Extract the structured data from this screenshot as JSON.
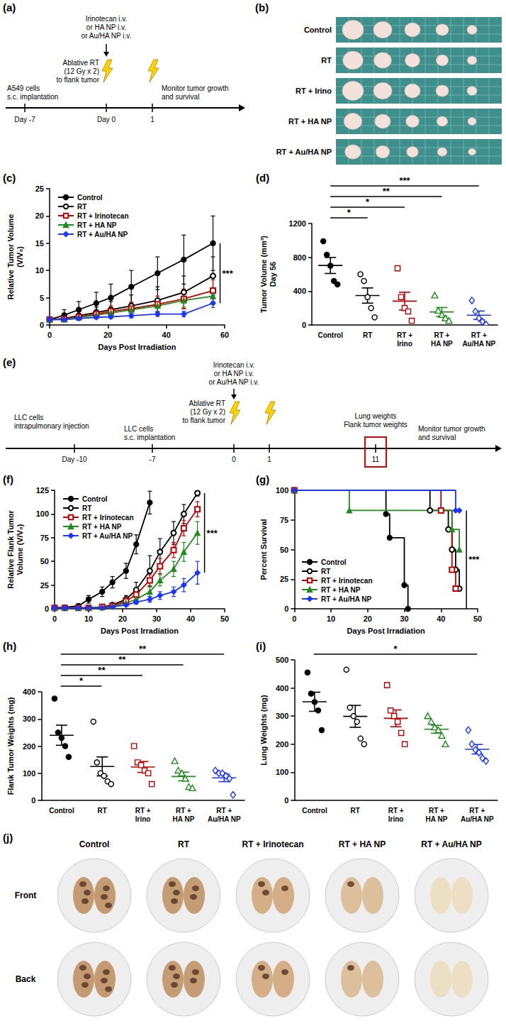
{
  "chart_data": [
    {
      "panel": "(c)",
      "type": "line",
      "xlabel": "Days Post Irradiation",
      "ylabel": [
        "Relative Tumor Volume",
        "(V/V₀)"
      ],
      "xlim": [
        0,
        60
      ],
      "xticks": [
        0,
        20,
        40,
        60
      ],
      "ylim": [
        0,
        25
      ],
      "yticks": [
        0,
        5,
        10,
        15,
        20,
        25
      ],
      "grid": false,
      "legend": "top-left",
      "series": [
        {
          "name": "Control",
          "color": "#000000",
          "marker": "circle",
          "x": [
            0,
            5,
            10,
            16,
            21,
            28,
            37,
            46,
            56
          ],
          "values": [
            1,
            1.8,
            2.8,
            4,
            5,
            7,
            9.5,
            12,
            15
          ],
          "error": [
            0.2,
            1,
            1.5,
            2,
            2.5,
            3,
            3,
            4.5,
            5
          ]
        },
        {
          "name": "RT",
          "color": "#000000",
          "marker": "circle-open",
          "x": [
            0,
            5,
            10,
            16,
            21,
            28,
            37,
            46,
            56
          ],
          "values": [
            1,
            1.2,
            1.7,
            2.3,
            2.8,
            3.5,
            4.5,
            6,
            9
          ],
          "error": [
            0.1,
            0.5,
            0.8,
            1,
            1.5,
            2,
            2.5,
            3,
            3.5
          ]
        },
        {
          "name": "RT + Irinotecan",
          "color": "#c00000",
          "marker": "square-open",
          "x": [
            0,
            5,
            10,
            16,
            21,
            28,
            37,
            46,
            56
          ],
          "values": [
            1,
            1.1,
            1.5,
            2,
            2.5,
            3,
            3.8,
            4.8,
            6.3
          ],
          "error": [
            0.1,
            0.4,
            0.6,
            0.8,
            1,
            1.2,
            1.5,
            1.8,
            2
          ]
        },
        {
          "name": "RT + HA NP",
          "color": "#1e8c1e",
          "marker": "triangle",
          "x": [
            0,
            5,
            10,
            16,
            21,
            28,
            37,
            46,
            56
          ],
          "values": [
            1,
            1,
            1.4,
            1.8,
            2.2,
            2.8,
            3.5,
            4.5,
            5.3
          ],
          "error": [
            0.1,
            0.3,
            0.4,
            0.5,
            0.6,
            0.8,
            1,
            1.2,
            1.5
          ]
        },
        {
          "name": "RT + Au/HA NP",
          "color": "#1a35ff",
          "marker": "diamond",
          "x": [
            0,
            5,
            10,
            16,
            21,
            28,
            37,
            46,
            56
          ],
          "values": [
            1,
            1,
            1.2,
            1.4,
            1.5,
            1.7,
            2,
            2,
            4
          ],
          "error": [
            0.1,
            0.2,
            0.3,
            0.3,
            0.3,
            0.4,
            0.4,
            0.5,
            0.8
          ]
        }
      ],
      "annotations": [
        {
          "text": "***"
        }
      ]
    },
    {
      "panel": "(d)",
      "type": "scatter",
      "ylabel": [
        "Tumor Volume (mm³)",
        "Day 56"
      ],
      "ylim": [
        0,
        1200
      ],
      "yticks": [
        0,
        400,
        800,
        1200
      ],
      "grid": false,
      "categories": [
        "Control",
        "RT",
        "RT + Irino",
        "RT + HA NP",
        "RT + Au/HA NP"
      ],
      "colors": [
        "#000000",
        "#000000",
        "#c00000",
        "#1e8c1e",
        "#1a35ff"
      ],
      "markers": [
        "circle",
        "circle-open",
        "square-open",
        "triangle-open",
        "diamond-open"
      ],
      "points": [
        [
          990,
          830,
          700,
          520,
          480
        ],
        [
          600,
          520,
          330,
          200,
          90
        ],
        [
          670,
          330,
          200,
          160,
          50
        ],
        [
          350,
          170,
          120,
          80,
          50
        ],
        [
          290,
          160,
          80,
          40,
          5
        ]
      ],
      "means": [
        704,
        348,
        282,
        154,
        115
      ],
      "sems": [
        95,
        90,
        105,
        52,
        50
      ],
      "significance": [
        {
          "from": "Control",
          "to": "RT",
          "text": "*"
        },
        {
          "from": "Control",
          "to": "RT + Irino",
          "text": "*"
        },
        {
          "from": "Control",
          "to": "RT + HA NP",
          "text": "**"
        },
        {
          "from": "Control",
          "to": "RT + Au/HA NP",
          "text": "***"
        }
      ]
    },
    {
      "panel": "(f)",
      "type": "line",
      "xlabel": "Days Post Irradiation",
      "ylabel": [
        "Relative Flank Tumor",
        "Volume (V/V₀)"
      ],
      "xlim": [
        0,
        50
      ],
      "xticks": [
        0,
        10,
        20,
        30,
        40,
        50
      ],
      "ylim": [
        0,
        125
      ],
      "yticks": [
        0,
        25,
        50,
        75,
        100,
        125
      ],
      "grid": false,
      "legend": "top-left",
      "series": [
        {
          "name": "Control",
          "color": "#000000",
          "marker": "circle",
          "x": [
            0,
            3,
            7,
            10,
            14,
            17,
            21,
            24,
            28
          ],
          "values": [
            1,
            1.5,
            3,
            10,
            18,
            28,
            40,
            68,
            112
          ],
          "error": [
            0,
            0.5,
            2,
            4,
            5,
            6,
            8,
            10,
            12
          ]
        },
        {
          "name": "RT",
          "color": "#000000",
          "marker": "circle-open",
          "x": [
            0,
            3,
            7,
            10,
            14,
            17,
            21,
            24,
            28,
            31,
            35,
            38,
            42
          ],
          "values": [
            1,
            1,
            1,
            1,
            2,
            4,
            10,
            20,
            40,
            60,
            80,
            100,
            122
          ],
          "error": [
            0,
            0,
            0,
            0.5,
            1,
            2,
            4,
            8,
            16,
            14,
            12,
            10,
            3
          ]
        },
        {
          "name": "RT + Irinotecan",
          "color": "#c00000",
          "marker": "square-open",
          "x": [
            0,
            3,
            7,
            10,
            14,
            17,
            21,
            24,
            28,
            31,
            35,
            38,
            42
          ],
          "values": [
            1,
            1,
            1,
            1,
            2,
            3,
            8,
            15,
            30,
            45,
            62,
            85,
            105
          ],
          "error": [
            0,
            0,
            0,
            0.5,
            1,
            1,
            3,
            5,
            6,
            8,
            8,
            8,
            8
          ]
        },
        {
          "name": "RT + HA NP",
          "color": "#1e8c1e",
          "marker": "triangle",
          "x": [
            0,
            3,
            7,
            10,
            14,
            17,
            21,
            24,
            28,
            31,
            35,
            38,
            42
          ],
          "values": [
            1,
            1,
            1,
            1,
            1.5,
            2.5,
            6,
            10,
            18,
            30,
            42,
            60,
            80
          ],
          "error": [
            0,
            0,
            0,
            0.3,
            0.5,
            1,
            2,
            3,
            5,
            6,
            8,
            10,
            12
          ]
        },
        {
          "name": "RT + Au/HA NP",
          "color": "#1a35ff",
          "marker": "diamond",
          "x": [
            0,
            3,
            7,
            10,
            14,
            17,
            21,
            24,
            28,
            31,
            35,
            38,
            42
          ],
          "values": [
            1,
            1,
            1,
            1,
            1,
            2,
            4,
            7,
            10,
            14,
            18,
            25,
            38
          ],
          "error": [
            0,
            0,
            0,
            0.2,
            0.3,
            0.5,
            1,
            2,
            3,
            4,
            5,
            7,
            12
          ]
        }
      ],
      "annotations": [
        {
          "text": "***"
        }
      ]
    },
    {
      "panel": "(g)",
      "type": "line",
      "line_style": "step",
      "xlabel": "Days Post Irradiation",
      "ylabel": [
        "Percent Survival"
      ],
      "xlim": [
        0,
        50
      ],
      "xticks": [
        0,
        10,
        20,
        30,
        40,
        50
      ],
      "ylim": [
        0,
        100
      ],
      "yticks": [
        0,
        25,
        50,
        75,
        100
      ],
      "grid": false,
      "legend": "bottom-left",
      "series": [
        {
          "name": "Control",
          "color": "#000000",
          "marker": "circle",
          "x": [
            0,
            25,
            26,
            30,
            31
          ],
          "values": [
            100,
            80,
            60,
            20,
            0
          ]
        },
        {
          "name": "RT",
          "color": "#000000",
          "marker": "circle-open",
          "x": [
            0,
            37,
            42,
            43,
            44,
            45
          ],
          "values": [
            100,
            83,
            67,
            50,
            33,
            17
          ]
        },
        {
          "name": "RT + Irinotecan",
          "color": "#c00000",
          "marker": "square-open",
          "x": [
            0,
            40,
            43,
            44
          ],
          "values": [
            100,
            83,
            33,
            17
          ]
        },
        {
          "name": "RT + HA NP",
          "color": "#1e8c1e",
          "marker": "triangle",
          "x": [
            0,
            15,
            43,
            45
          ],
          "values": [
            100,
            83,
            67,
            50
          ]
        },
        {
          "name": "RT + Au/HA NP",
          "color": "#1a35ff",
          "marker": "diamond",
          "x": [
            0,
            44,
            45
          ],
          "values": [
            100,
            83,
            83
          ]
        }
      ],
      "annotations": [
        {
          "text": "***"
        }
      ]
    },
    {
      "panel": "(h)",
      "type": "scatter",
      "ylabel": [
        "Flank Tumor Weights (mg)"
      ],
      "ylim": [
        0,
        400
      ],
      "yticks": [
        0,
        100,
        200,
        300,
        400
      ],
      "grid": false,
      "categories": [
        "Control",
        "RT",
        "RT + Irino",
        "RT + HA NP",
        "RT + Au/HA NP"
      ],
      "colors": [
        "#000000",
        "#000000",
        "#c00000",
        "#1e8c1e",
        "#1a35ff"
      ],
      "markers": [
        "circle",
        "circle-open",
        "square-open",
        "triangle-open",
        "diamond-open"
      ],
      "points": [
        [
          375,
          250,
          230,
          200,
          160
        ],
        [
          290,
          140,
          100,
          90,
          70,
          60
        ],
        [
          200,
          140,
          130,
          110,
          100,
          60
        ],
        [
          145,
          110,
          100,
          80,
          50,
          45
        ],
        [
          110,
          100,
          100,
          90,
          80,
          20
        ]
      ],
      "means": [
        240,
        125,
        123,
        88,
        83
      ],
      "sems": [
        37,
        35,
        20,
        16,
        14
      ],
      "significance": [
        {
          "from": "Control",
          "to": "RT",
          "text": "*"
        },
        {
          "from": "Control",
          "to": "RT + Irino",
          "text": "**"
        },
        {
          "from": "Control",
          "to": "RT + HA NP",
          "text": "**"
        },
        {
          "from": "Control",
          "to": "RT + Au/HA NP",
          "text": "**"
        }
      ]
    },
    {
      "panel": "(i)",
      "type": "scatter",
      "ylabel": [
        "Lung Weights (mg)"
      ],
      "ylim": [
        0,
        500
      ],
      "yticks": [
        0,
        100,
        200,
        300,
        400,
        500
      ],
      "grid": false,
      "categories": [
        "Control",
        "RT",
        "RT + Irino",
        "RT + HA NP",
        "RT + Au/HA NP"
      ],
      "colors": [
        "#000000",
        "#000000",
        "#c00000",
        "#1e8c1e",
        "#1a35ff"
      ],
      "markers": [
        "circle",
        "circle-open",
        "square-open",
        "triangle-open",
        "diamond-open"
      ],
      "points": [
        [
          455,
          380,
          350,
          320,
          250
        ],
        [
          465,
          330,
          300,
          280,
          220,
          200
        ],
        [
          410,
          320,
          300,
          280,
          240,
          200
        ],
        [
          300,
          280,
          260,
          250,
          230,
          200
        ],
        [
          250,
          200,
          180,
          170,
          150,
          140
        ]
      ],
      "means": [
        351,
        299,
        292,
        253,
        182
      ],
      "sems": [
        34,
        39,
        30,
        14,
        17
      ],
      "significance": [
        {
          "from": "Control",
          "to": "RT + Au/HA NP",
          "text": "*"
        }
      ]
    }
  ],
  "diagrams": [
    {
      "panel": "(a)",
      "type": "timeline",
      "ticks": [
        "Day -7",
        "Day 0",
        "1"
      ],
      "injection": [
        "Irinotecan i.v.",
        "or HA NP i.v.",
        "or Au/HA NP i.v."
      ],
      "radiation": [
        "Ablative RT",
        "(12 Gy x 2)",
        "to flank tumor"
      ],
      "events": [
        [
          "A549 cells",
          "s.c. implantation"
        ]
      ],
      "monitor": [
        "Monitor tumor growth",
        "and survival"
      ]
    },
    {
      "panel": "(e)",
      "type": "timeline",
      "ticks": [
        "Day -10",
        "-7",
        "0",
        "1",
        "11"
      ],
      "injection": [
        "Irinotecan i.v.",
        "or HA NP i.v.",
        "or Au/HA NP i.v."
      ],
      "radiation": [
        "Ablative RT",
        "(12 Gy x 2)",
        "to flank tumor"
      ],
      "events": [
        [
          "LLC cells",
          "intrapulmonary injection"
        ],
        [
          "LLC cells",
          "s.c. implantation"
        ]
      ],
      "endpoints": [
        "Lung weights",
        "Flank tumor weights"
      ],
      "monitor": [
        "Monitor tumor growth",
        "and survival"
      ]
    }
  ],
  "images": [
    {
      "panel": "(b)",
      "row_labels": [
        "Control",
        "RT",
        "RT + Irino",
        "RT + HA NP",
        "RT + Au/HA NP"
      ]
    },
    {
      "panel": "(j)",
      "column_labels": [
        "Control",
        "RT",
        "RT + Irinotecan",
        "RT + HA NP",
        "RT + Au/HA NP"
      ],
      "row_labels": [
        "Front",
        "Back"
      ]
    }
  ]
}
